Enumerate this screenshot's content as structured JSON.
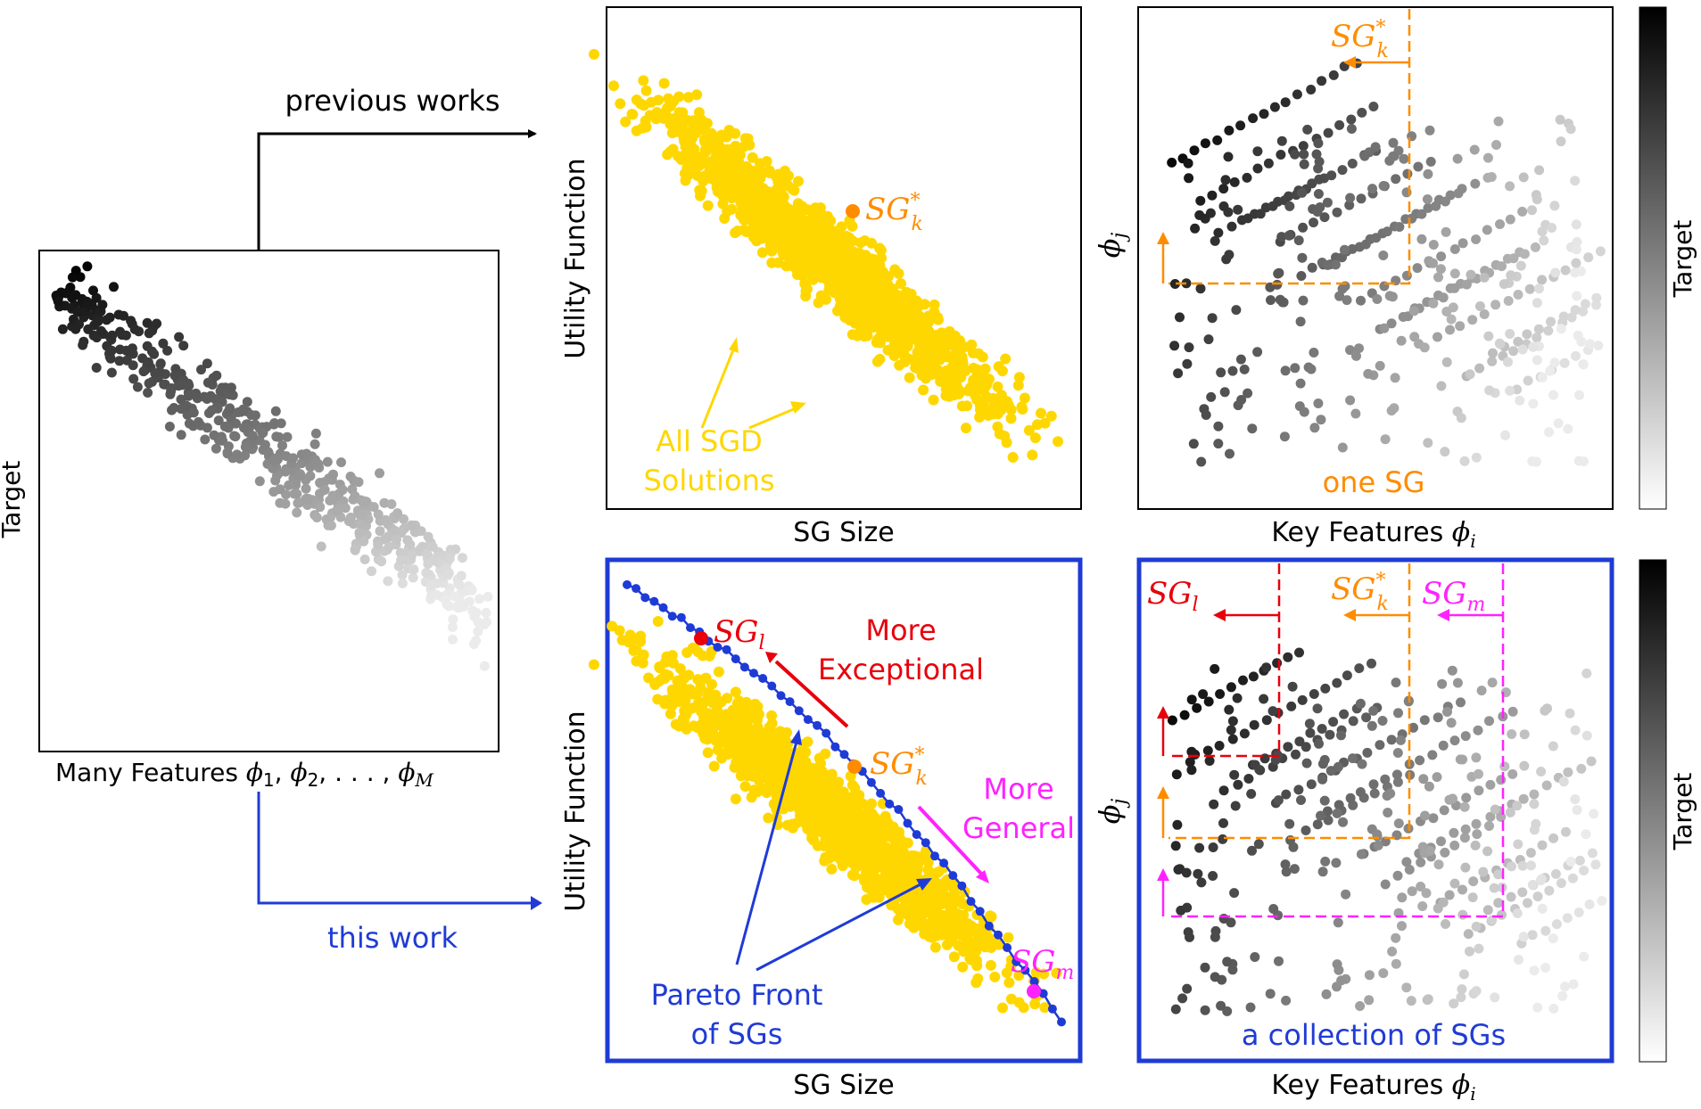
{
  "colors": {
    "yellow": "#FFD700",
    "orange": "#FF8C00",
    "red": "#E8000B",
    "magenta": "#FF22FF",
    "blue": "#1F3BD6",
    "black": "#000000"
  },
  "left_panel": {
    "ylabel": "Target",
    "xlabel_prefix": "Many Features ",
    "xlabel_math": "ϕ₁, ϕ₂, . . . , ϕ_M"
  },
  "flow": {
    "previous_works": "previous works",
    "this_work": "this work"
  },
  "top_middle": {
    "ylabel": "Utility Function",
    "xlabel": "SG Size",
    "point_label": "SG*k",
    "annotation_line1": "All SGD",
    "annotation_line2": "Solutions"
  },
  "top_right": {
    "ylabel": "ϕj",
    "xlabel": "Key Features ϕi",
    "box_label": "SG*k",
    "caption": "one SG",
    "colorbar_label": "Target"
  },
  "bottom_middle": {
    "ylabel": "Utility Function",
    "xlabel": "SG Size",
    "label_l": "SGl",
    "label_k": "SG*k",
    "label_m": "SGm",
    "exceptional_line1": "More",
    "exceptional_line2": "Exceptional",
    "general_line1": "More",
    "general_line2": "General",
    "pareto_line1": "Pareto Front",
    "pareto_line2": "of SGs"
  },
  "bottom_right": {
    "ylabel": "ϕj",
    "xlabel": "Key Features ϕi",
    "label_l": "SGl",
    "label_k": "SG*k",
    "label_m": "SGm",
    "caption": "a collection of SGs",
    "colorbar_label": "Target"
  }
}
